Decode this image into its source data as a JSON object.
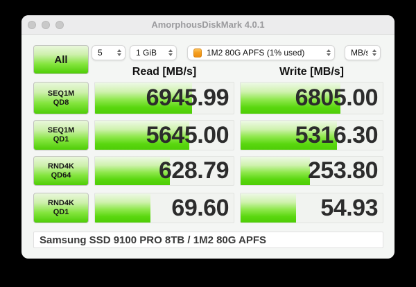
{
  "window": {
    "title": "AmorphousDiskMark 4.0.1"
  },
  "toolbar": {
    "all_button_label": "All",
    "trial_count": "5",
    "test_size": "1 GiB",
    "volume": "1M2 80G APFS (1% used)",
    "unit": "MB/s"
  },
  "columns": {
    "read": "Read [MB/s]",
    "write": "Write [MB/s]"
  },
  "rows": [
    {
      "label_line1": "SEQ1M",
      "label_line2": "QD8",
      "read": "6945.99",
      "write": "6805.00",
      "read_pct": 70,
      "write_pct": 70
    },
    {
      "label_line1": "SEQ1M",
      "label_line2": "QD1",
      "read": "5645.00",
      "write": "5316.30",
      "read_pct": 68,
      "write_pct": 68
    },
    {
      "label_line1": "RND4K",
      "label_line2": "QD64",
      "read": "628.79",
      "write": "253.80",
      "read_pct": 54,
      "write_pct": 49
    },
    {
      "label_line1": "RND4K",
      "label_line2": "QD1",
      "read": "69.60",
      "write": "54.93",
      "read_pct": 40,
      "write_pct": 39
    }
  ],
  "footer": {
    "device_info": "Samsung SSD 9100 PRO 8TB / 1M2 80G APFS"
  },
  "colors": {
    "bar_top": "#eef9e7",
    "bar_mid": "#8fe84d",
    "bar_bottom": "#4ecd06",
    "icon_orange": "#f59f1e",
    "value_text": "#2c2c2c"
  }
}
